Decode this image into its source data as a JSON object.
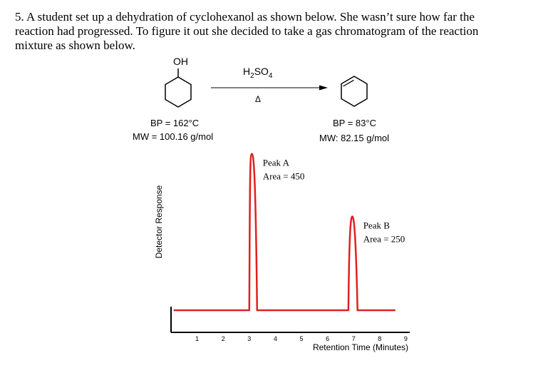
{
  "question": {
    "lines": [
      "5. A student set up a dehydration of cyclohexanol as shown below. She wasn’t sure how far the",
      "reaction had progressed. To figure it out she decided to take a gas chromatogram of the reaction",
      "mixture as shown below."
    ]
  },
  "reaction": {
    "reactant_group": "OH",
    "reagent_main": "H",
    "reagent_sub1": "2",
    "reagent_main2": "SO",
    "reagent_sub2": "4",
    "condition": "Δ",
    "reactant_bp": "BP = 162°C",
    "reactant_mw": "MW = 100.16 g/mol",
    "product_bp": "BP = 83°C",
    "product_mw": "MW: 82.15 g/mol"
  },
  "chart_data": {
    "type": "line",
    "xlabel": "Retention Time (Minutes)",
    "ylabel": "Detector Response",
    "xticks": [
      1,
      2,
      3,
      4,
      5,
      6,
      7,
      8,
      9
    ],
    "xlim": [
      0,
      9.3
    ],
    "ylim": [
      0,
      1
    ],
    "baseline": 0.12,
    "line_color": "#e02020",
    "peaks": [
      {
        "name": "Peak A",
        "area_label": "Area = 450",
        "start": 3.0,
        "apex": 3.1,
        "end": 3.3,
        "height": 0.97
      },
      {
        "name": "Peak B",
        "area_label": "Area = 250",
        "start": 6.8,
        "apex": 6.95,
        "end": 7.15,
        "height": 0.63
      }
    ]
  }
}
